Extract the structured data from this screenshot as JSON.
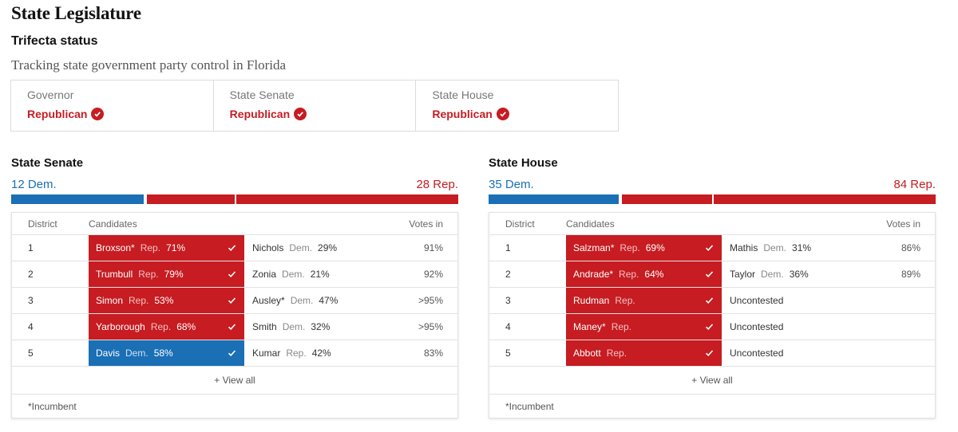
{
  "title": "State Legislature",
  "trifecta": {
    "heading": "Trifecta status",
    "subtitle": "Tracking state government party control in Florida",
    "cells": [
      {
        "label": "Governor",
        "party": "Republican"
      },
      {
        "label": "State Senate",
        "party": "Republican"
      },
      {
        "label": "State House",
        "party": "Republican"
      }
    ]
  },
  "colors": {
    "dem": "#1a6fb5",
    "rep": "#c61c22"
  },
  "senate": {
    "title": "State Senate",
    "dem_label": "12 Dem.",
    "rep_label": "28 Rep.",
    "dem_seats": 12,
    "rep_seats": 28,
    "headers": {
      "district": "District",
      "candidates": "Candidates",
      "votes": "Votes in"
    },
    "rows": [
      {
        "district": "1",
        "winner": "Broxson*",
        "winner_party": "Rep.",
        "winner_pct": "71%",
        "winner_side": "rep",
        "loser": "Nichols",
        "loser_party": "Dem.",
        "loser_pct": "29%",
        "votes": "91%"
      },
      {
        "district": "2",
        "winner": "Trumbull",
        "winner_party": "Rep.",
        "winner_pct": "79%",
        "winner_side": "rep",
        "loser": "Zonia",
        "loser_party": "Dem.",
        "loser_pct": "21%",
        "votes": "92%"
      },
      {
        "district": "3",
        "winner": "Simon",
        "winner_party": "Rep.",
        "winner_pct": "53%",
        "winner_side": "rep",
        "loser": "Ausley*",
        "loser_party": "Dem.",
        "loser_pct": "47%",
        "votes": ">95%"
      },
      {
        "district": "4",
        "winner": "Yarborough",
        "winner_party": "Rep.",
        "winner_pct": "68%",
        "winner_side": "rep",
        "loser": "Smith",
        "loser_party": "Dem.",
        "loser_pct": "32%",
        "votes": ">95%"
      },
      {
        "district": "5",
        "winner": "Davis",
        "winner_party": "Dem.",
        "winner_pct": "58%",
        "winner_side": "dem",
        "loser": "Kumar",
        "loser_party": "Rep.",
        "loser_pct": "42%",
        "votes": "83%"
      }
    ],
    "view_all": "+ View all",
    "footnote": "*Incumbent"
  },
  "house": {
    "title": "State House",
    "dem_label": "35 Dem.",
    "rep_label": "84 Rep.",
    "dem_seats": 35,
    "rep_seats": 84,
    "headers": {
      "district": "District",
      "candidates": "Candidates",
      "votes": "Votes in"
    },
    "rows": [
      {
        "district": "1",
        "winner": "Salzman*",
        "winner_party": "Rep.",
        "winner_pct": "69%",
        "winner_side": "rep",
        "loser": "Mathis",
        "loser_party": "Dem.",
        "loser_pct": "31%",
        "votes": "86%"
      },
      {
        "district": "2",
        "winner": "Andrade*",
        "winner_party": "Rep.",
        "winner_pct": "64%",
        "winner_side": "rep",
        "loser": "Taylor",
        "loser_party": "Dem.",
        "loser_pct": "36%",
        "votes": "89%"
      },
      {
        "district": "3",
        "winner": "Rudman",
        "winner_party": "Rep.",
        "winner_pct": "",
        "winner_side": "rep",
        "loser": "Uncontested",
        "loser_party": "",
        "loser_pct": "",
        "votes": ""
      },
      {
        "district": "4",
        "winner": "Maney*",
        "winner_party": "Rep.",
        "winner_pct": "",
        "winner_side": "rep",
        "loser": "Uncontested",
        "loser_party": "",
        "loser_pct": "",
        "votes": ""
      },
      {
        "district": "5",
        "winner": "Abbott",
        "winner_party": "Rep.",
        "winner_pct": "",
        "winner_side": "rep",
        "loser": "Uncontested",
        "loser_party": "",
        "loser_pct": "",
        "votes": ""
      }
    ],
    "view_all": "+ View all",
    "footnote": "*Incumbent"
  }
}
